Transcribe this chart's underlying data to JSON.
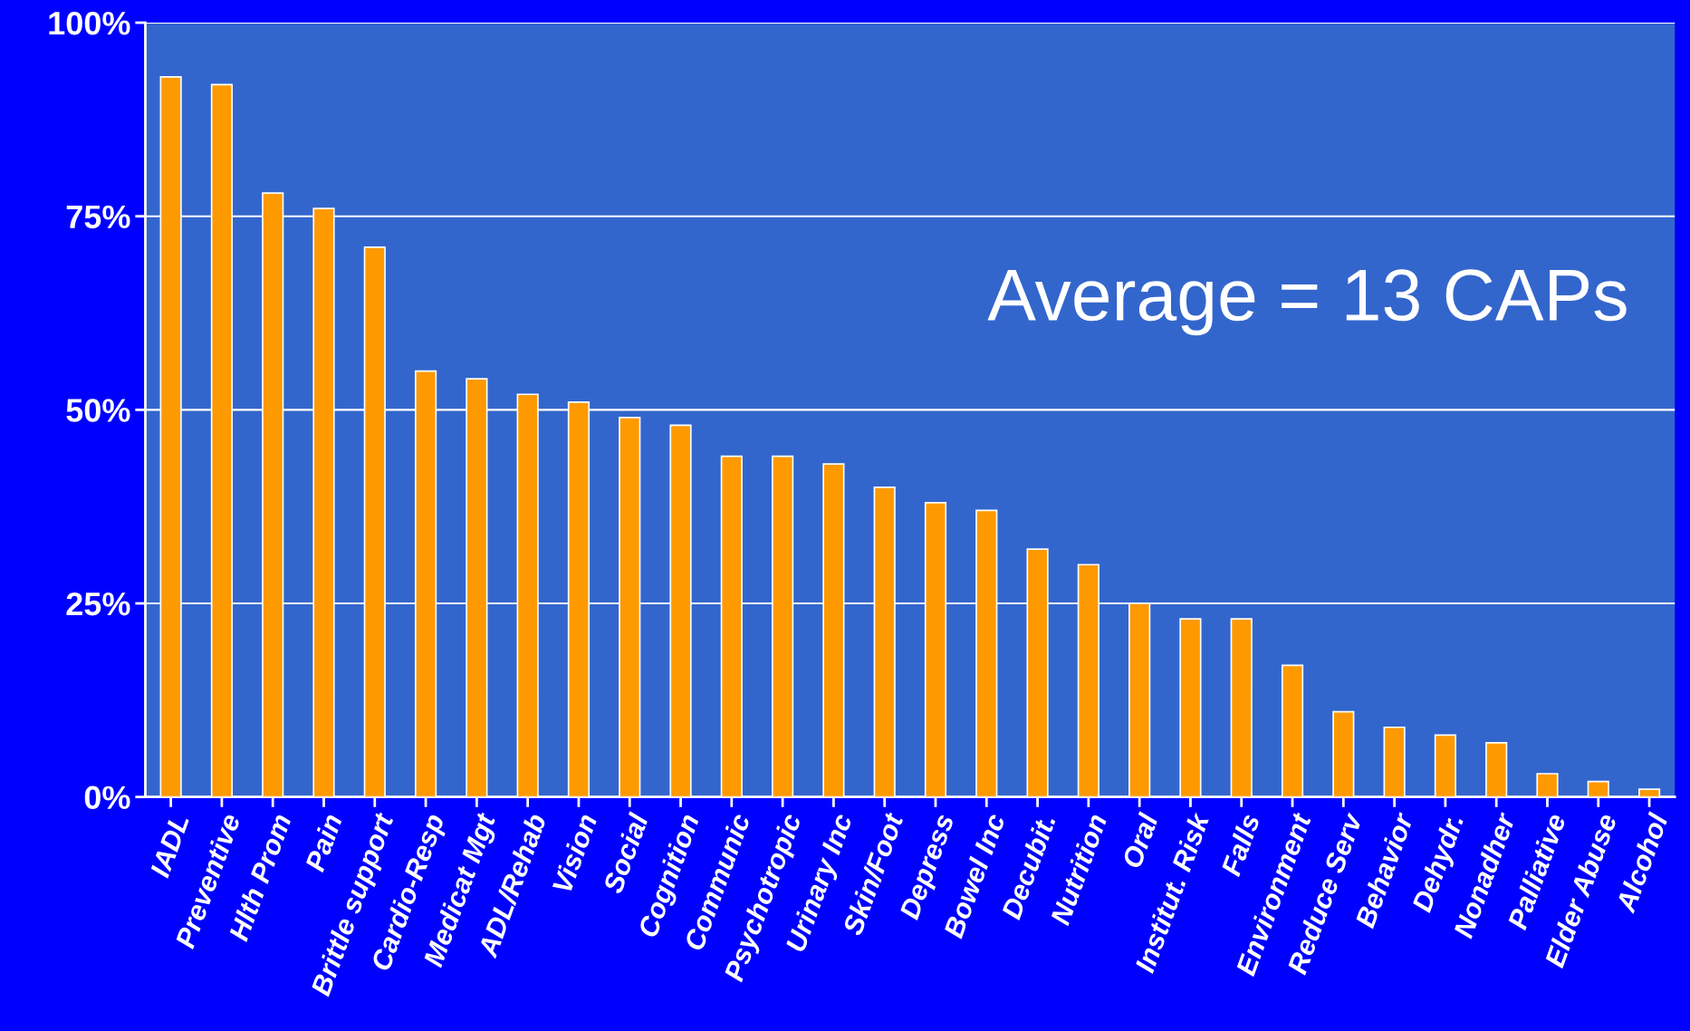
{
  "chart_data": {
    "type": "bar",
    "categories": [
      "IADL",
      "Preventive",
      "Hlth Prom",
      "Pain",
      "Brittle support",
      "Cardio-Resp",
      "Medicat Mgt",
      "ADL/Rehab",
      "Vision",
      "Social",
      "Cognition",
      "Communic",
      "Psychotropic",
      "Urinary Inc",
      "Skin/Foot",
      "Depress",
      "Bowel Inc",
      "Decubit.",
      "Nutrition",
      "Oral",
      "Institut. Risk",
      "Falls",
      "Environment",
      "Reduce Serv",
      "Behavior",
      "Dehydr.",
      "Nonadher",
      "Palliative",
      "Elder Abuse",
      "Alcohol"
    ],
    "values": [
      93,
      92,
      78,
      76,
      71,
      55,
      54,
      52,
      51,
      49,
      48,
      44,
      44,
      43,
      40,
      38,
      37,
      32,
      30,
      25,
      23,
      23,
      17,
      11,
      9,
      8,
      7,
      3,
      2,
      1
    ],
    "color": "#ff9900",
    "ylim": [
      0,
      100
    ],
    "yticks": [
      {
        "value": 0,
        "label": "0%"
      },
      {
        "value": 25,
        "label": "25%"
      },
      {
        "value": 50,
        "label": "50%"
      },
      {
        "value": 75,
        "label": "75%"
      },
      {
        "value": 100,
        "label": "100%"
      }
    ],
    "grid": "y",
    "legend": false,
    "annotations": [
      "Average = 13 CAPs"
    ]
  }
}
